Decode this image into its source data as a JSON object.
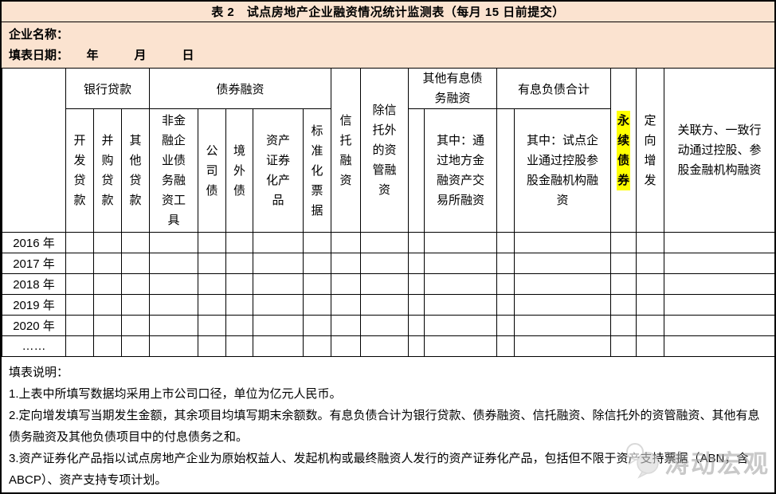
{
  "colors": {
    "band_bg": "#FBE3D0",
    "highlight": "#FFFF00",
    "border": "#000000",
    "watermark": "#a6a6a6"
  },
  "title": "表 2　试点房地产企业融资情况统计监测表（每月 15 日前提交）",
  "info": {
    "company": "企业名称：",
    "date": "填表日期：　　年　　　月　　　日"
  },
  "table": {
    "groups": {
      "bank_loans": "银行贷款",
      "bond_financing": "债券融资",
      "other_interest_debt": "其他有息债务融资",
      "total_interest_liability": "有息负债合计"
    },
    "columns": {
      "trust": "信托融资",
      "non_trust_asset_mgmt": "除信托外的资管融资",
      "perpetual_bond": "永续债券",
      "private_placement": "定向增发",
      "related_party": "关联方、一致行动通过控股、参股金融机构融资",
      "dev_loan": "开发贷款",
      "mna_loan": "并购贷款",
      "other_loan": "其他贷款",
      "nonfin_debt_instrument": "非金融企业债务融资工具",
      "corporate_bond": "公司债",
      "offshore_bond": "境外债",
      "abs_product": "资产证券化产品",
      "standardized_notes": "标准化票据",
      "via_local_exchange": "其中：通过地方金融资产交易所融资",
      "via_holding_fin_inst": "其中：试点企业通过控股参股金融机构融资"
    },
    "rows": [
      {
        "label": "2016 年"
      },
      {
        "label": "2017 年"
      },
      {
        "label": "2018 年"
      },
      {
        "label": "2019 年"
      },
      {
        "label": "2020 年"
      },
      {
        "label": "……"
      }
    ]
  },
  "notes": {
    "heading": "填表说明：",
    "items": [
      "1.上表中所填写数据均采用上市公司口径，单位为亿元人民币。",
      "2.定向增发填写当期发生金额，其余项目均填写期末余额数。有息负债合计为银行贷款、债券融资、信托融资、除信托外的资管融资、其他有息债务融资及其他负债项目中的付息债务之和。",
      "3.资产证券化产品指以试点房地产企业为原始权益人、发起机构或最终融资人发行的资产证券化产品，包括但不限于资产支持票据（ABN，含 ABCP）、资产支持专项计划。"
    ]
  },
  "watermark": {
    "text": "涛动宏观"
  }
}
